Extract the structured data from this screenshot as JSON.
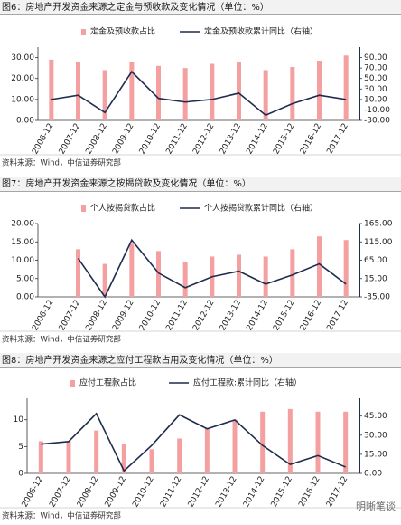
{
  "chart_data": [
    {
      "type": "bar",
      "title": "图6：房地产开发资金来源之定金与预收款及变化情况（单位：%）",
      "source": "资料来源：Wind，中信证券研究部",
      "categories": [
        "2006-12",
        "2007-12",
        "2008-12",
        "2009-12",
        "2010-12",
        "2011-12",
        "2012-12",
        "2013-12",
        "2014-12",
        "2015-12",
        "2016-12",
        "2017-12"
      ],
      "series": [
        {
          "name": "定金及预收款占比",
          "type": "bar",
          "color": "#f4a0a0",
          "values": [
            29,
            28,
            24,
            28,
            26,
            25,
            27,
            28,
            24,
            25.5,
            28.5,
            31
          ]
        },
        {
          "name": "定金及预收款累计同比（右轴）",
          "type": "line",
          "axis": "y2",
          "color": "#1f2d4d",
          "values": [
            10,
            18,
            -15,
            63,
            12,
            5,
            10,
            22,
            -20,
            2,
            18,
            10
          ]
        }
      ],
      "ylim": [
        0,
        35
      ],
      "yticks": [
        {
          "value": 0,
          "label": "0.00"
        },
        {
          "value": 10,
          "label": "10.00"
        },
        {
          "value": 20,
          "label": "20.00"
        },
        {
          "value": 30,
          "label": "30.00"
        }
      ],
      "y2lim": [
        -30,
        110
      ],
      "y2ticks": [
        {
          "value": -30,
          "label": "-30.00"
        },
        {
          "value": -10,
          "label": "-10.00"
        },
        {
          "value": 10,
          "label": "10.00"
        },
        {
          "value": 30,
          "label": "30.00"
        },
        {
          "value": 50,
          "label": "50.00"
        },
        {
          "value": 70,
          "label": "70.00"
        },
        {
          "value": 90,
          "label": "90.00"
        }
      ]
    },
    {
      "type": "bar",
      "title": "图7：房地产开发资金来源之按揭贷款及变化情况（单位：%）",
      "source": "资料来源：Wind，中信证券研究部",
      "categories": [
        "2006-12",
        "2007-12",
        "2008-12",
        "2009-12",
        "2010-12",
        "2011-12",
        "2012-12",
        "2013-12",
        "2014-12",
        "2015-12",
        "2016-12",
        "2017-12"
      ],
      "series": [
        {
          "name": "个人按揭贷款占比",
          "type": "bar",
          "color": "#f4a0a0",
          "values": [
            null,
            13,
            9,
            14.5,
            12.5,
            9.5,
            11,
            11.5,
            11,
            13,
            16.5,
            15.5
          ]
        },
        {
          "name": "个人按揭贷款累计同比（右轴）",
          "type": "line",
          "axis": "y2",
          "color": "#1f2d4d",
          "values": [
            null,
            70,
            -35,
            120,
            30,
            -10,
            20,
            35,
            0,
            25,
            55,
            0
          ]
        }
      ],
      "ylim": [
        0,
        20
      ],
      "yticks": [
        {
          "value": 0,
          "label": "0.00"
        },
        {
          "value": 5,
          "label": "5.00"
        },
        {
          "value": 10,
          "label": "10.00"
        },
        {
          "value": 15,
          "label": "15.00"
        },
        {
          "value": 20,
          "label": "20.00"
        }
      ],
      "y2lim": [
        -35,
        165
      ],
      "y2ticks": [
        {
          "value": -35,
          "label": "-35.00"
        },
        {
          "value": 15,
          "label": "15.00"
        },
        {
          "value": 65,
          "label": "65.00"
        },
        {
          "value": 115,
          "label": "115.00"
        },
        {
          "value": 165,
          "label": "165.00"
        }
      ]
    },
    {
      "type": "bar",
      "title": "图8：房地产开发资金来源之应付工程款占用及变化情况（单位：%）",
      "source": "资料来源：Wind，中信证券研究部",
      "categories": [
        "2006-12",
        "2007-12",
        "2008-12",
        "2009-12",
        "2010-12",
        "2011-12",
        "2012-12",
        "2013-12",
        "2014-12",
        "2015-12",
        "2016-12",
        "2017-12"
      ],
      "series": [
        {
          "name": "应付工程款占比",
          "type": "bar",
          "color": "#f4a0a0",
          "values": [
            6,
            6,
            8,
            5.5,
            4.5,
            6.5,
            8.5,
            10,
            11.5,
            12,
            11.5,
            11.5
          ]
        },
        {
          "name": "应付工程款:累计同比（右轴）",
          "type": "line",
          "axis": "y2",
          "color": "#1f2d4d",
          "values": [
            23,
            25,
            47,
            2,
            22,
            46,
            35,
            42,
            22,
            7,
            14,
            5
          ]
        }
      ],
      "ylim": [
        0,
        14
      ],
      "yticks": [
        0,
        5,
        10
      ],
      "y2lim": [
        0,
        59
      ],
      "y2ticks": [
        {
          "value": 0,
          "label": "0.00"
        },
        {
          "value": 15,
          "label": "15.00"
        },
        {
          "value": 30,
          "label": "30.00"
        },
        {
          "value": 45,
          "label": "45.00"
        }
      ]
    }
  ],
  "watermark": "明晰笔谈"
}
